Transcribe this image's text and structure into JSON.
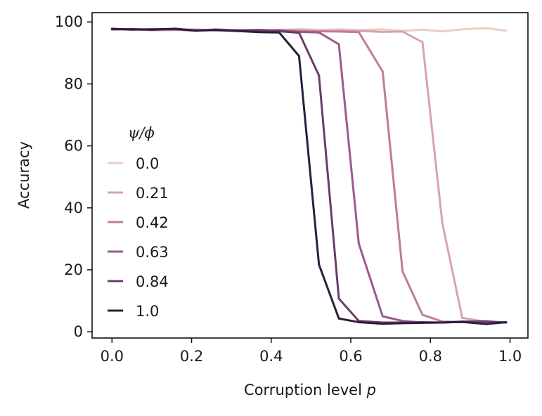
{
  "chart_data": {
    "type": "line",
    "xlabel": "Corruption level",
    "xlabel_var": "p",
    "ylabel": "Accuracy",
    "xlim": [
      -0.05,
      1.045
    ],
    "ylim": [
      -2,
      103
    ],
    "xticks": [
      0.0,
      0.2,
      0.4,
      0.6,
      0.8,
      1.0
    ],
    "xtick_labels": [
      "0.0",
      "0.2",
      "0.4",
      "0.6",
      "0.8",
      "1.0"
    ],
    "yticks": [
      0,
      20,
      40,
      60,
      80,
      100
    ],
    "ytick_labels": [
      "0",
      "20",
      "40",
      "60",
      "80",
      "100"
    ],
    "grid": false,
    "legend": {
      "title": "ψ/ϕ",
      "placement": "center-left"
    },
    "x": [
      0.0,
      0.05,
      0.1,
      0.16,
      0.21,
      0.26,
      0.31,
      0.37,
      0.42,
      0.47,
      0.52,
      0.57,
      0.62,
      0.68,
      0.73,
      0.78,
      0.83,
      0.88,
      0.94,
      0.99
    ],
    "series": [
      {
        "name": "0.0",
        "color": "#e8cfc5",
        "values": [
          97.5,
          97.6,
          97.4,
          97.5,
          97.6,
          97.3,
          97.4,
          97.2,
          97.4,
          97.7,
          97.5,
          97.6,
          97.4,
          97.6,
          97.1,
          97.5,
          97.0,
          97.6,
          98.0,
          97.2
        ]
      },
      {
        "name": "0.21",
        "color": "#d9a3ad",
        "values": [
          97.5,
          97.6,
          97.3,
          97.4,
          97.5,
          97.3,
          97.2,
          97.4,
          97.3,
          97.1,
          97.0,
          97.2,
          97.1,
          96.8,
          96.9,
          93.5,
          35.0,
          4.5,
          3.2,
          3.0
        ]
      },
      {
        "name": "0.42",
        "color": "#c07c99",
        "values": [
          97.7,
          97.5,
          97.7,
          97.5,
          97.2,
          97.6,
          97.3,
          97.4,
          97.3,
          97.2,
          97.0,
          96.9,
          96.7,
          84.0,
          19.5,
          5.5,
          3.3,
          3.1,
          3.0,
          3.0
        ]
      },
      {
        "name": "0.63",
        "color": "#9b5a8b",
        "values": [
          97.6,
          97.7,
          97.5,
          97.6,
          97.3,
          97.5,
          97.2,
          97.1,
          97.4,
          96.8,
          96.6,
          92.8,
          28.5,
          5.0,
          3.5,
          3.0,
          3.0,
          3.2,
          3.1,
          3.0
        ]
      },
      {
        "name": "0.84",
        "color": "#6a3c6c",
        "values": [
          97.8,
          97.5,
          97.6,
          97.7,
          97.3,
          97.4,
          97.3,
          97.4,
          97.0,
          96.5,
          82.7,
          10.7,
          3.5,
          3.0,
          3.0,
          3.1,
          3.0,
          3.3,
          3.4,
          3.0
        ]
      },
      {
        "name": "1.0",
        "color": "#2c1e3d",
        "values": [
          97.7,
          97.6,
          97.5,
          97.8,
          97.2,
          97.4,
          97.1,
          96.7,
          96.6,
          89.0,
          21.7,
          4.3,
          3.1,
          2.6,
          2.8,
          2.9,
          3.0,
          3.2,
          2.5,
          3.1
        ]
      }
    ]
  }
}
